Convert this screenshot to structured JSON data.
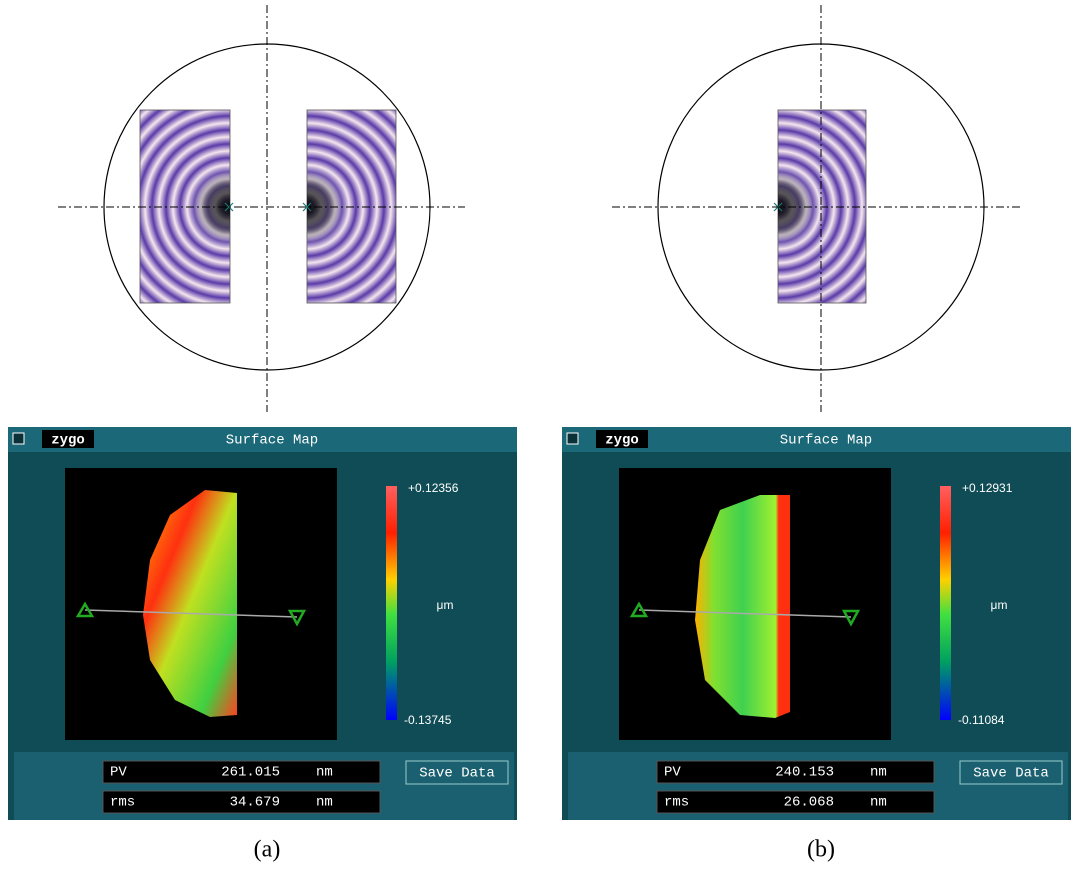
{
  "panels": [
    {
      "screen": {
        "logo": "zygo",
        "title": "Surface Map",
        "scale_max": "+0.12356",
        "unit": "μm",
        "scale_min": "-0.13745",
        "pv_label": "PV",
        "pv_value": "261.015",
        "pv_unit": "nm",
        "rms_label": "rms",
        "rms_value": "34.679",
        "rms_unit": "nm",
        "button": "Save Data"
      },
      "caption": "(a)"
    },
    {
      "screen": {
        "logo": "zygo",
        "title": "Surface Map",
        "scale_max": "+0.12931",
        "unit": "μm",
        "scale_min": "-0.11084",
        "pv_label": "PV",
        "pv_value": "240.153",
        "pv_unit": "nm",
        "rms_label": "rms",
        "rms_value": "26.068",
        "rms_unit": "nm",
        "button": "Save Data"
      },
      "caption": "(b)"
    }
  ]
}
